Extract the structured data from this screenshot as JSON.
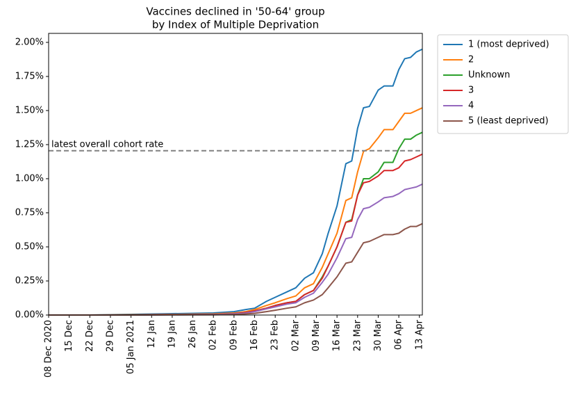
{
  "chart_data": {
    "type": "line",
    "title": "Vaccines declined in '50-64' group",
    "subtitle": "by Index of Multiple Deprivation",
    "x": [
      "2020-12-08",
      "2020-12-22",
      "2021-01-05",
      "2021-01-19",
      "2021-02-02",
      "2021-02-09",
      "2021-02-13",
      "2021-02-16",
      "2021-02-20",
      "2021-02-23",
      "2021-02-27",
      "2021-03-02",
      "2021-03-05",
      "2021-03-08",
      "2021-03-11",
      "2021-03-13",
      "2021-03-16",
      "2021-03-19",
      "2021-03-21",
      "2021-03-23",
      "2021-03-25",
      "2021-03-27",
      "2021-03-30",
      "2021-04-01",
      "2021-04-04",
      "2021-04-06",
      "2021-04-08",
      "2021-04-10",
      "2021-04-12",
      "2021-04-14"
    ],
    "series": [
      {
        "name": "1 (most deprived)",
        "color": "#1f77b4",
        "values": [
          0,
          0,
          0.005,
          0.01,
          0.015,
          0.025,
          0.04,
          0.05,
          0.1,
          0.13,
          0.17,
          0.2,
          0.27,
          0.31,
          0.45,
          0.6,
          0.8,
          1.11,
          1.13,
          1.37,
          1.52,
          1.53,
          1.65,
          1.68,
          1.68,
          1.8,
          1.88,
          1.89,
          1.93,
          1.95
        ]
      },
      {
        "name": "2",
        "color": "#ff7f0e",
        "values": [
          0,
          0,
          0.002,
          0.005,
          0.008,
          0.015,
          0.025,
          0.04,
          0.07,
          0.09,
          0.12,
          0.14,
          0.2,
          0.23,
          0.35,
          0.45,
          0.6,
          0.84,
          0.86,
          1.05,
          1.2,
          1.22,
          1.3,
          1.36,
          1.36,
          1.42,
          1.48,
          1.48,
          1.5,
          1.52
        ]
      },
      {
        "name": "Unknown",
        "color": "#2ca02c",
        "values": [
          0,
          0,
          0,
          0.003,
          0.005,
          0.01,
          0.02,
          0.03,
          0.05,
          0.07,
          0.09,
          0.1,
          0.15,
          0.18,
          0.28,
          0.36,
          0.5,
          0.68,
          0.7,
          0.88,
          1.0,
          1.0,
          1.05,
          1.12,
          1.12,
          1.22,
          1.29,
          1.29,
          1.32,
          1.34
        ]
      },
      {
        "name": "3",
        "color": "#d62728",
        "values": [
          0,
          0,
          0,
          0.003,
          0.005,
          0.01,
          0.02,
          0.03,
          0.05,
          0.07,
          0.09,
          0.1,
          0.15,
          0.18,
          0.27,
          0.36,
          0.5,
          0.68,
          0.69,
          0.88,
          0.97,
          0.98,
          1.02,
          1.06,
          1.06,
          1.08,
          1.13,
          1.14,
          1.16,
          1.18
        ]
      },
      {
        "name": "4",
        "color": "#9467bd",
        "values": [
          0,
          0,
          0,
          0.002,
          0.004,
          0.008,
          0.015,
          0.025,
          0.045,
          0.06,
          0.08,
          0.09,
          0.13,
          0.16,
          0.24,
          0.3,
          0.42,
          0.56,
          0.57,
          0.7,
          0.78,
          0.79,
          0.83,
          0.86,
          0.87,
          0.89,
          0.92,
          0.93,
          0.94,
          0.96
        ]
      },
      {
        "name": "5 (least deprived)",
        "color": "#8c564b",
        "values": [
          0,
          0,
          0,
          0.001,
          0.002,
          0.004,
          0.008,
          0.012,
          0.025,
          0.035,
          0.05,
          0.06,
          0.09,
          0.11,
          0.15,
          0.2,
          0.28,
          0.38,
          0.39,
          0.46,
          0.53,
          0.54,
          0.57,
          0.59,
          0.59,
          0.6,
          0.63,
          0.65,
          0.65,
          0.67
        ]
      }
    ],
    "reference_line": {
      "value": 1.205,
      "label": "latest overall cohort rate",
      "color": "#808080"
    },
    "xlim": [
      "2020-12-08",
      "2021-04-14"
    ],
    "xticks": [
      {
        "value": "2020-12-08",
        "label": "08 Dec 2020"
      },
      {
        "value": "2020-12-15",
        "label": "15 Dec"
      },
      {
        "value": "2020-12-22",
        "label": "22 Dec"
      },
      {
        "value": "2020-12-29",
        "label": "29 Dec"
      },
      {
        "value": "2021-01-05",
        "label": "05 Jan 2021"
      },
      {
        "value": "2021-01-12",
        "label": "12 Jan"
      },
      {
        "value": "2021-01-19",
        "label": "19 Jan"
      },
      {
        "value": "2021-01-26",
        "label": "26 Jan"
      },
      {
        "value": "2021-02-02",
        "label": "02 Feb"
      },
      {
        "value": "2021-02-09",
        "label": "09 Feb"
      },
      {
        "value": "2021-02-16",
        "label": "16 Feb"
      },
      {
        "value": "2021-02-23",
        "label": "23 Feb"
      },
      {
        "value": "2021-03-02",
        "label": "02 Mar"
      },
      {
        "value": "2021-03-09",
        "label": "09 Mar"
      },
      {
        "value": "2021-03-16",
        "label": "16 Mar"
      },
      {
        "value": "2021-03-23",
        "label": "23 Mar"
      },
      {
        "value": "2021-03-30",
        "label": "30 Mar"
      },
      {
        "value": "2021-04-06",
        "label": "06 Apr"
      },
      {
        "value": "2021-04-13",
        "label": "13 Apr"
      }
    ],
    "ylim": [
      0,
      2.066
    ],
    "yticks": [
      {
        "value": 0,
        "label": "0.00%"
      },
      {
        "value": 0.25,
        "label": "0.25%"
      },
      {
        "value": 0.5,
        "label": "0.50%"
      },
      {
        "value": 0.75,
        "label": "0.75%"
      },
      {
        "value": 1,
        "label": "1.00%"
      },
      {
        "value": 1.25,
        "label": "1.25%"
      },
      {
        "value": 1.5,
        "label": "1.50%"
      },
      {
        "value": 1.75,
        "label": "1.75%"
      },
      {
        "value": 2,
        "label": "2.00%"
      }
    ],
    "legend": "outside-right"
  }
}
